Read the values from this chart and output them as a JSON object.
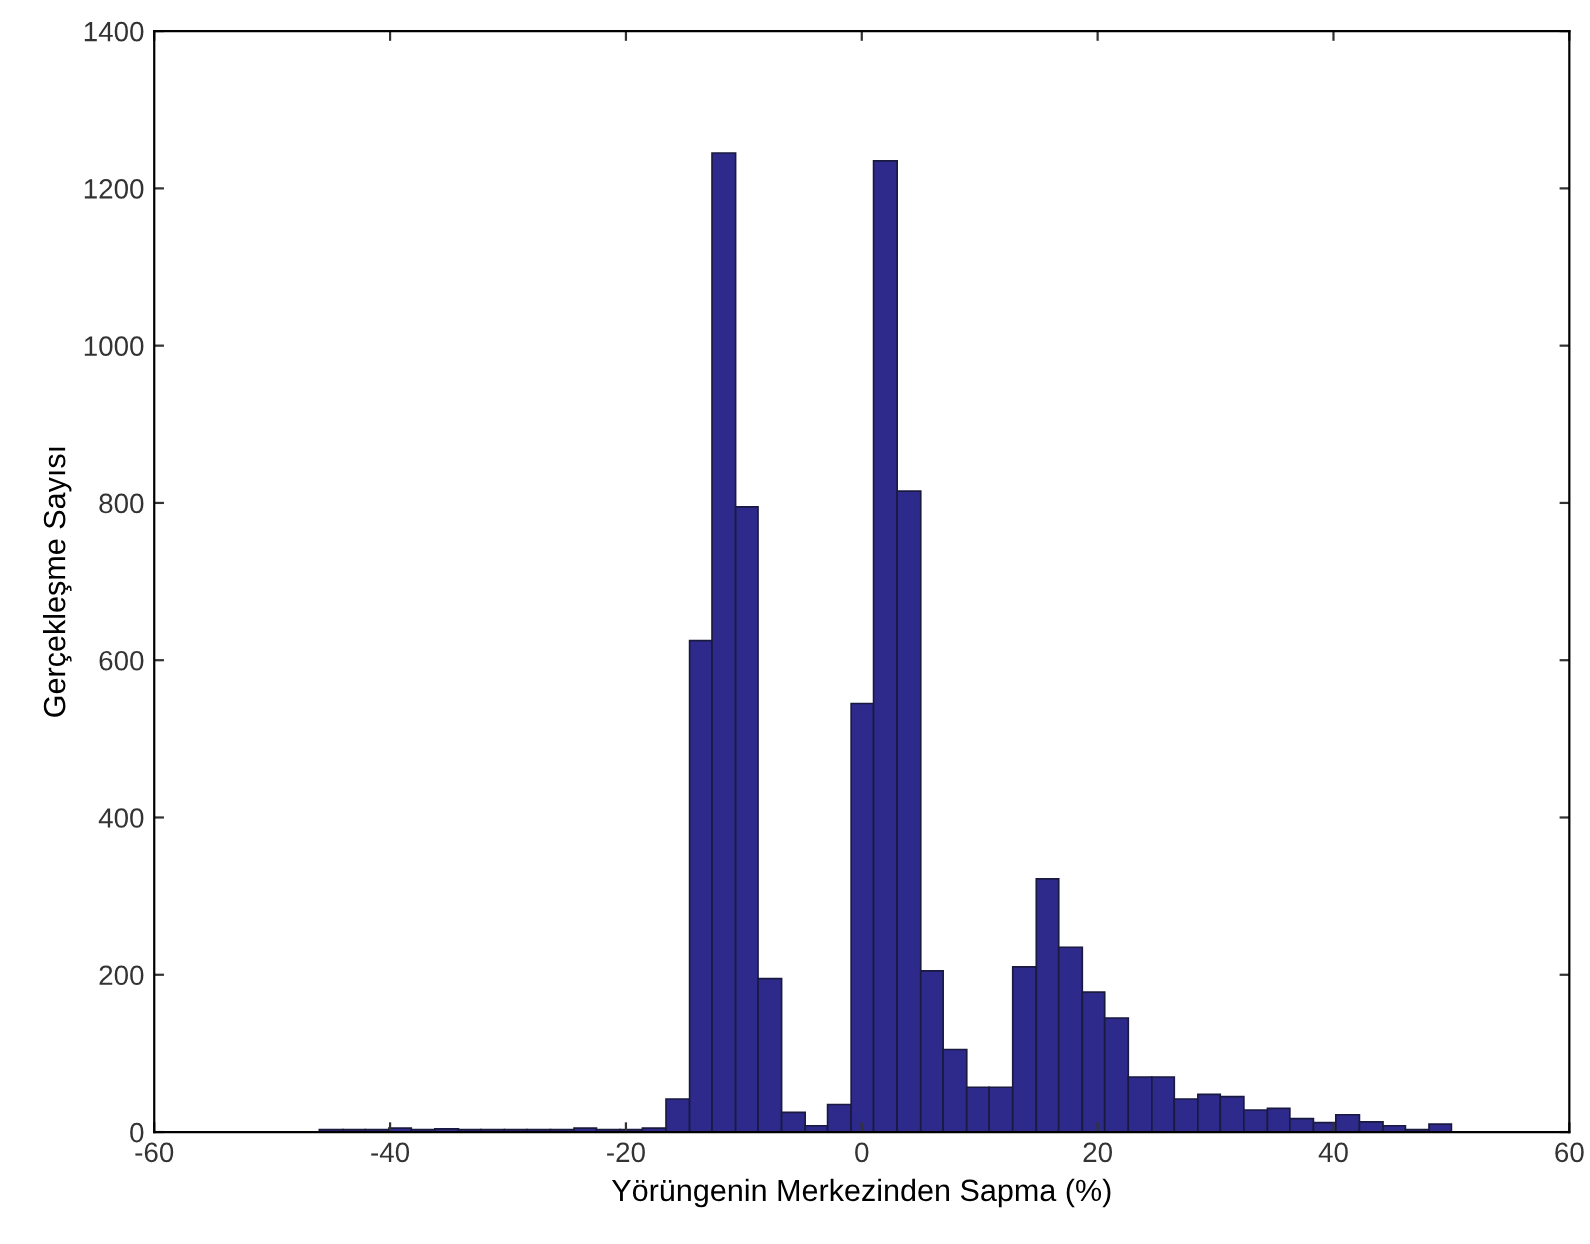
{
  "chart_data": {
    "type": "histogram",
    "xlabel": "Yörüngenin Merkezinden Sapma (%)",
    "ylabel": "Gerçekleşme Sayısı",
    "bins": [
      -46,
      -44,
      -42.1,
      -40.1,
      -38.2,
      -36.2,
      -34.2,
      -32.3,
      -30.3,
      -28.4,
      -26.4,
      -24.4,
      -22.5,
      -20.5,
      -18.6,
      -16.6,
      -14.6,
      -12.7,
      -10.7,
      -8.8,
      -6.8,
      -4.8,
      -2.9,
      -0.9,
      1,
      3,
      5,
      6.9,
      8.9,
      10.8,
      12.8,
      14.8,
      16.7,
      18.7,
      20.6,
      22.6,
      24.6,
      26.5,
      28.5,
      30.4,
      32.4,
      34.4,
      36.3,
      38.3,
      40.2,
      42.2,
      44.2,
      46.1,
      48.1,
      50
    ],
    "values": [
      3,
      3,
      3,
      5,
      3,
      4,
      3,
      3,
      3,
      3,
      3,
      5,
      3,
      3,
      5,
      42,
      625,
      1245,
      795,
      195,
      25,
      8,
      35,
      545,
      1235,
      815,
      205,
      105,
      57,
      57,
      210,
      322,
      235,
      178,
      145,
      70,
      70,
      42,
      48,
      45,
      28,
      30,
      17,
      12,
      22,
      13,
      8,
      3,
      10
    ],
    "color": "#2e2a8c",
    "xlim": [
      -60,
      60
    ],
    "xticks": [
      -60,
      -40,
      -20,
      0,
      20,
      40,
      60
    ],
    "ylim": [
      0,
      1400
    ],
    "yticks": [
      0,
      200,
      400,
      600,
      800,
      1000,
      1200,
      1400
    ],
    "grid": false
  }
}
